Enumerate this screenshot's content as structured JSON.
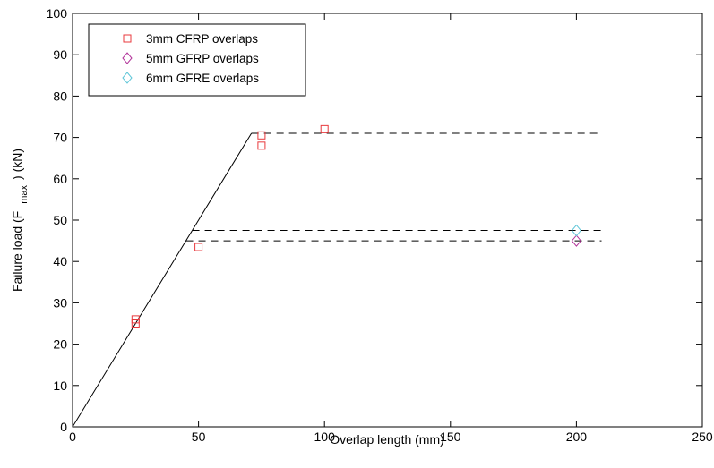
{
  "chart_data": {
    "type": "scatter",
    "title": "",
    "xlabel": "Overlap length (mm)",
    "ylabel": {
      "main": "Failure load (F",
      "subscript": "max",
      "suffix": ") (kN)"
    },
    "xlim": [
      0,
      250
    ],
    "ylim": [
      0,
      100
    ],
    "x_ticks": [
      0,
      50,
      100,
      150,
      200,
      250
    ],
    "y_ticks": [
      0,
      10,
      20,
      30,
      40,
      50,
      60,
      70,
      80,
      90,
      100
    ],
    "grid": false,
    "legend_position": "top-left",
    "series": [
      {
        "name": "3mm CFRP overlaps",
        "marker": "square",
        "color": "#e8393d",
        "points": [
          [
            25,
            25
          ],
          [
            25,
            26
          ],
          [
            50,
            43.5
          ],
          [
            75,
            68
          ],
          [
            75,
            70.5
          ],
          [
            100,
            72
          ]
        ]
      },
      {
        "name": "5mm GFRP overlaps",
        "marker": "diamond",
        "color": "#b2349a",
        "points": [
          [
            200,
            45
          ]
        ]
      },
      {
        "name": "6mm GFRE overlaps",
        "marker": "diamond",
        "color": "#5fc6d8",
        "points": [
          [
            200,
            47.5
          ]
        ]
      }
    ],
    "lines": [
      {
        "style": "solid",
        "color": "#000000",
        "points": [
          [
            0,
            0
          ],
          [
            71,
            71
          ]
        ]
      },
      {
        "style": "dashed",
        "color": "#000000",
        "points": [
          [
            71,
            71
          ],
          [
            210,
            71
          ]
        ]
      },
      {
        "style": "dashed",
        "color": "#000000",
        "points": [
          [
            45,
            45
          ],
          [
            210,
            45
          ]
        ]
      },
      {
        "style": "dashed",
        "color": "#000000",
        "points": [
          [
            47.5,
            47.5
          ],
          [
            210,
            47.5
          ]
        ]
      }
    ]
  }
}
